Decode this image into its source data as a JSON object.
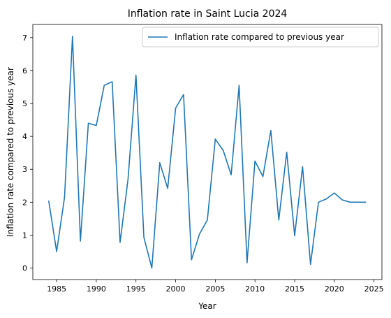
{
  "chart_data": {
    "type": "line",
    "title": "Inflation rate in Saint Lucia 2024",
    "xlabel": "Year",
    "ylabel": "Inflation rate compared to previous year",
    "xlim": [
      1982.0,
      2026.0
    ],
    "ylim": [
      -0.35,
      7.4
    ],
    "xticks": [
      1985,
      1990,
      1995,
      2000,
      2005,
      2010,
      2015,
      2020,
      2025
    ],
    "yticks": [
      0,
      1,
      2,
      3,
      4,
      5,
      6,
      7
    ],
    "grid": false,
    "legend_position": "upper right",
    "series": [
      {
        "name": "Inflation rate compared to previous year",
        "color": "#1f77b4",
        "x": [
          1984,
          1985,
          1986,
          1987,
          1988,
          1989,
          1990,
          1991,
          1992,
          1993,
          1994,
          1995,
          1996,
          1997,
          1998,
          1999,
          2000,
          2001,
          2002,
          2003,
          2004,
          2005,
          2006,
          2007,
          2008,
          2009,
          2010,
          2011,
          2012,
          2013,
          2014,
          2015,
          2016,
          2017,
          2018,
          2019,
          2020,
          2021,
          2022,
          2023,
          2024
        ],
        "values": [
          2.05,
          0.5,
          2.15,
          7.04,
          0.82,
          4.4,
          4.33,
          5.55,
          5.66,
          0.78,
          2.7,
          5.86,
          0.93,
          0.0,
          3.2,
          2.42,
          4.86,
          5.27,
          0.25,
          1.03,
          1.46,
          3.92,
          3.57,
          2.83,
          5.55,
          0.16,
          3.25,
          2.78,
          4.18,
          1.46,
          3.52,
          0.98,
          3.08,
          0.11,
          2.0,
          2.1,
          2.28,
          2.07,
          2.0,
          2.0,
          2.0
        ]
      }
    ]
  }
}
